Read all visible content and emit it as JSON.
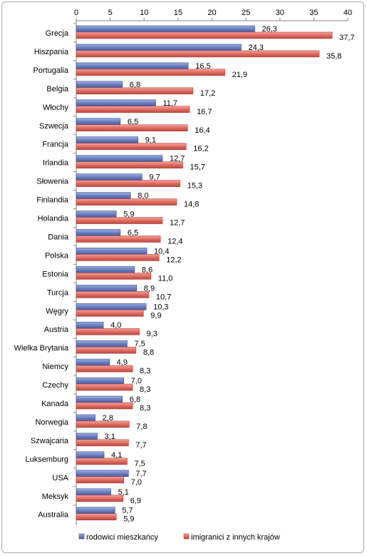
{
  "chart_data": {
    "type": "bar",
    "orientation": "horizontal",
    "categories": [
      "Grecja",
      "Hiszpania",
      "Portugalia",
      "Belgia",
      "Włochy",
      "Szwecja",
      "Francja",
      "Irlandia",
      "Słowenia",
      "Finlandia",
      "Holandia",
      "Dania",
      "Polska",
      "Estonia",
      "Turcja",
      "Węgry",
      "Austria",
      "Wielka Brytania",
      "Niemcy",
      "Czechy",
      "Kanada",
      "Norwegia",
      "Szwajcaria",
      "Luksemburg",
      "USA",
      "Meksyk",
      "Australia"
    ],
    "series": [
      {
        "name": "rodowici mieszkańcy",
        "color": "#6b7fc0",
        "values": [
          26.3,
          24.3,
          16.5,
          6.8,
          11.7,
          6.5,
          9.1,
          12.7,
          9.7,
          8.0,
          5.9,
          6.5,
          10.4,
          8.6,
          8.9,
          10.3,
          4.0,
          7.5,
          4.9,
          7.0,
          6.8,
          2.8,
          3.1,
          4.1,
          7.7,
          5.1,
          5.7
        ],
        "labels": [
          "26,3",
          "24,3",
          "16,5",
          "6,8",
          "11,7",
          "6,5",
          "9,1",
          "12,7",
          "9,7",
          "8,0",
          "5,9",
          "6,5",
          "10,4",
          "8,6",
          "8,9",
          "10,3",
          "4,0",
          "7,5",
          "4,9",
          "7,0",
          "6,8",
          "2,8",
          "3,1",
          "4,1",
          "7,7",
          "5,1",
          "5,7"
        ]
      },
      {
        "name": "imigranici z innych krajów",
        "color": "#e06b62",
        "values": [
          37.7,
          35.8,
          21.9,
          17.2,
          16.7,
          16.4,
          16.2,
          15.7,
          15.3,
          14.8,
          12.7,
          12.4,
          12.2,
          11.0,
          10.7,
          9.9,
          9.3,
          8.8,
          8.3,
          8.3,
          8.3,
          7.8,
          7.7,
          7.5,
          7.0,
          6.9,
          5.9
        ],
        "labels": [
          "37,7",
          "35,8",
          "21,9",
          "17,2",
          "16,7",
          "16,4",
          "16,2",
          "15,7",
          "15,3",
          "14,8",
          "12,7",
          "12,4",
          "12,2",
          "11,0",
          "10,7",
          "9,9",
          "9,3",
          "8,8",
          "8,3",
          "8,3",
          "8,3",
          "7,8",
          "7,7",
          "7,5",
          "7,0",
          "6,9",
          "5,9"
        ]
      }
    ],
    "xlim": [
      0,
      40
    ],
    "ticks": [
      "0",
      "5",
      "10",
      "15",
      "20",
      "25",
      "30",
      "35",
      "40"
    ],
    "grid": false,
    "axis_position": "top",
    "legend_position": "bottom"
  }
}
